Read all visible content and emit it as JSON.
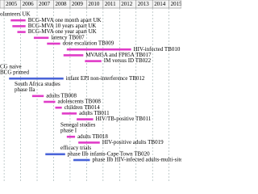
{
  "chart_data": {
    "type": "gantt",
    "xlim": [
      2004.75,
      2015.75
    ],
    "xticks": [
      2005,
      2006,
      2007,
      2008,
      2009,
      2010,
      2011,
      2012,
      2013,
      2014,
      2015
    ],
    "grid": true,
    "tasks": [
      {
        "label": "olunteers UK",
        "start": null,
        "end": null,
        "color": null
      },
      {
        "label": "BCG-MVA one month apart UK",
        "start": 2005.4,
        "end": 2006.3,
        "color": "#e03cc8"
      },
      {
        "label": "BCG-MVA 10 years apart UK",
        "start": 2005.5,
        "end": 2006.3,
        "color": "#e03cc8"
      },
      {
        "label": "BCG-MVA one year apart UK",
        "start": 2005.8,
        "end": 2006.3,
        "color": "#e03cc8"
      },
      {
        "label": "latency TB007",
        "start": 2006.8,
        "end": 2007.7,
        "color": "#e03cc8"
      },
      {
        "label": "dose escalation TB009",
        "start": 2007.6,
        "end": 2008.4,
        "color": "#e03cc8"
      },
      {
        "label": "HIV-infected TB010",
        "start": 2008.8,
        "end": 2012.7,
        "color": "#e03cc8"
      },
      {
        "label": "MVA85A and FP85A TB017",
        "start": 2008.6,
        "end": 2009.8,
        "color": "#e03cc8"
      },
      {
        "label": "IM versus ID TB022",
        "start": 2009.9,
        "end": 2010.9,
        "color": "#e03cc8"
      },
      {
        "label": "CG naive",
        "start": null,
        "end": null,
        "color": null
      },
      {
        "label": "BCG primed",
        "start": null,
        "end": null,
        "color": null
      },
      {
        "label": "infant EPI non-interference TB012",
        "start": 2005.3,
        "end": 2008.6,
        "color": "#4a64d8"
      },
      {
        "label": "South Africa studies",
        "start": null,
        "end": null,
        "color": null
      },
      {
        "label": "phase IIa",
        "start": null,
        "end": null,
        "color": null
      },
      {
        "label": "adults TB008",
        "start": 2006.7,
        "end": 2007.4,
        "color": "#e03cc8"
      },
      {
        "label": "adolescents TB008",
        "start": 2007.4,
        "end": 2008.1,
        "color": "#e03cc8"
      },
      {
        "label": "children TB014",
        "start": 2008.1,
        "end": 2008.5,
        "color": "#e03cc8"
      },
      {
        "label": "adults TB011",
        "start": 2008.5,
        "end": 2009.4,
        "color": "#e03cc8"
      },
      {
        "label": "HIV/TB-positive TB011",
        "start": 2009.4,
        "end": 2010.4,
        "color": "#e03cc8"
      },
      {
        "label": "Senegal studies",
        "start": null,
        "end": null,
        "color": null
      },
      {
        "label": "phase I",
        "start": null,
        "end": null,
        "color": null
      },
      {
        "label": "adults TB018",
        "start": 2008.8,
        "end": 2009.3,
        "color": "#e03cc8"
      },
      {
        "label": "HIV-positive adults TB019",
        "start": 2009.5,
        "end": 2010.8,
        "color": "#e03cc8"
      },
      {
        "label": "efficacy trials",
        "start": null,
        "end": null,
        "color": null
      },
      {
        "label": "phase IIb infants-Cape Town TB020",
        "start": 2007.5,
        "end": 2008.7,
        "color": "#4a64d8"
      },
      {
        "label": "phase IIb HIV-infected adults-multi-site",
        "start": 2009.2,
        "end": 2010.2,
        "color": "#4a64d8"
      }
    ]
  }
}
